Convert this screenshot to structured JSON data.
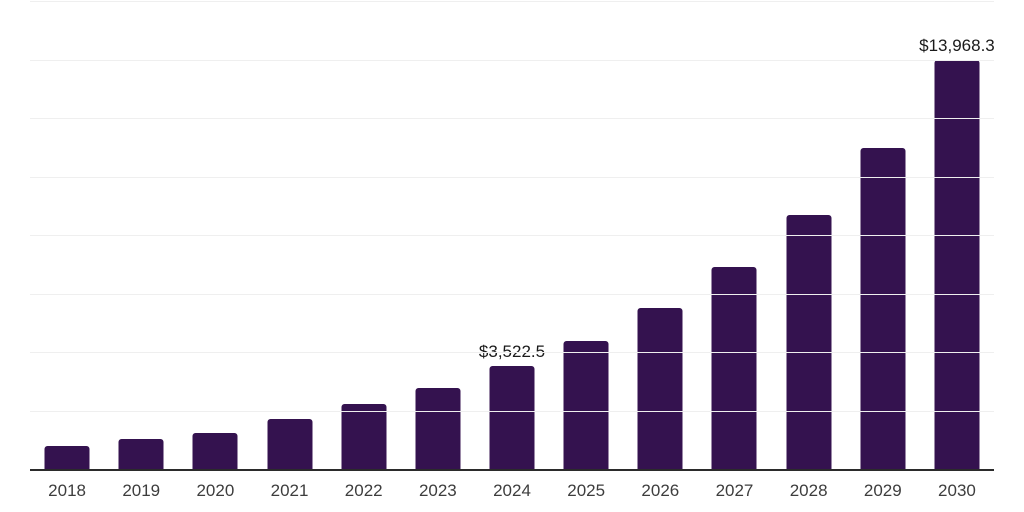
{
  "chart_data": {
    "type": "bar",
    "title": "",
    "xlabel": "",
    "ylabel": "",
    "categories": [
      "2018",
      "2019",
      "2020",
      "2021",
      "2022",
      "2023",
      "2024",
      "2025",
      "2026",
      "2027",
      "2028",
      "2029",
      "2030"
    ],
    "values": [
      790,
      1020,
      1230,
      1700,
      2210,
      2760,
      3522.5,
      4380,
      5500,
      6890,
      8700,
      10970,
      13968.3
    ],
    "value_labels": {
      "2024": "$3,522.5",
      "2030": "$13,968.3"
    },
    "ylim": [
      0,
      16000
    ],
    "grid": true,
    "gridline_intervals": 8,
    "legend": "none",
    "colors": {
      "bar": "#34124F",
      "gridline": "#efefef",
      "axis": "#2b2b2b",
      "value_label_text": "#1a1a1a",
      "tick_label_text": "#3d3d3d",
      "background": "#ffffff"
    }
  }
}
